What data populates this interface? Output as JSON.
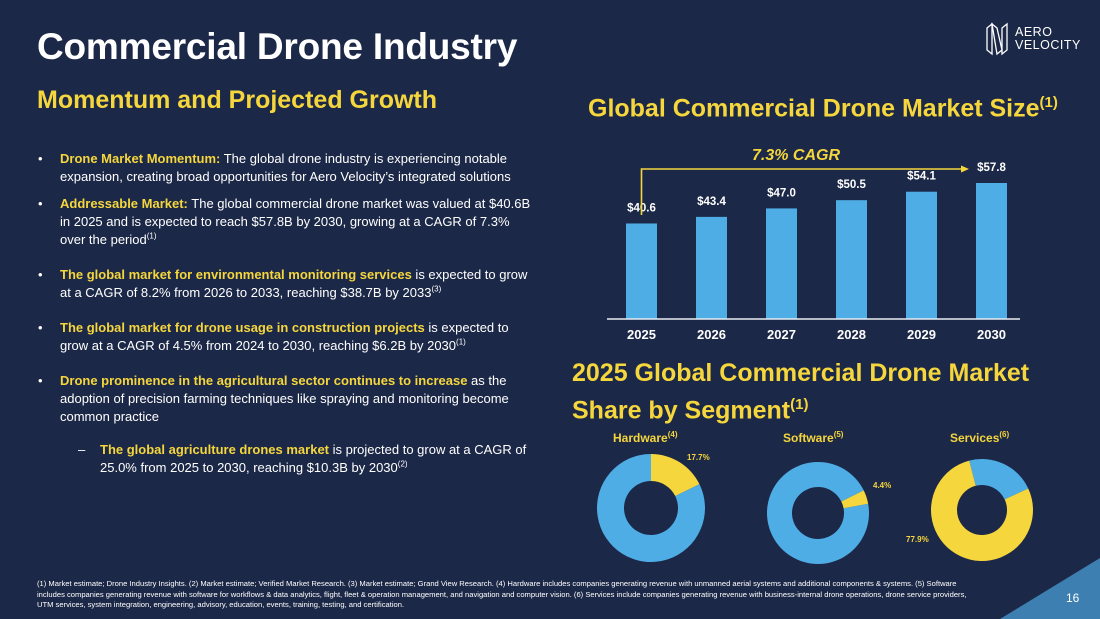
{
  "header": {
    "title": "Commercial Drone Industry",
    "subtitle": "Momentum and Projected Growth",
    "logo_line1": "AERO",
    "logo_line2": "VELOCITY"
  },
  "colors": {
    "background": "#1c2847",
    "accent_yellow": "#f5d63d",
    "bar_blue": "#4fade6",
    "corner_blue": "#3d7fb0"
  },
  "bullets": [
    {
      "highlight": "Drone Market Momentum:",
      "text": " The global drone industry is experiencing notable expansion, creating broad opportunities for Aero Velocity’s integrated solutions",
      "ref": ""
    },
    {
      "highlight": "Addressable Market:",
      "text": " The global commercial drone market was valued at $40.6B in 2025 and is expected to reach $57.8B by 2030, growing at a CAGR of 7.3% over the period",
      "ref": "(1)"
    },
    {
      "highlight": "The global market for environmental monitoring services",
      "text": " is expected to grow at a CAGR of 8.2% from 2026 to 2033, reaching $38.7B by 2033",
      "ref": "(3)"
    },
    {
      "highlight": "The global market for drone usage in construction projects",
      "text": " is expected to grow at a CAGR of 4.5% from 2024 to 2030, reaching $6.2B by 2030",
      "ref": "(1)"
    },
    {
      "highlight": "Drone prominence in the agricultural sector continues to increase",
      "text": " as the adoption of precision farming techniques like spraying and monitoring become common practice",
      "ref": ""
    }
  ],
  "sub_bullet": {
    "highlight": "The global agriculture drones market",
    "text": " is projected to grow at a CAGR of 25.0% from 2025 to 2030, reaching $10.3B by 2030",
    "ref": "(2)"
  },
  "bullet_marker": "•",
  "sub_bullet_marker": "–",
  "chart_data": [
    {
      "type": "bar",
      "title": "Global Commercial Drone Market Size",
      "title_ref": "(1)",
      "annotation": "7.3% CAGR",
      "categories": [
        "2025",
        "2026",
        "2027",
        "2028",
        "2029",
        "2030"
      ],
      "values": [
        40.6,
        43.4,
        47.0,
        50.5,
        54.1,
        57.8
      ],
      "data_labels": [
        "$40.6",
        "$43.4",
        "$47.0",
        "$50.5",
        "$54.1",
        "$57.8"
      ],
      "xlabel": "",
      "ylabel": "",
      "unit": "$B",
      "ylim": [
        0,
        60
      ],
      "grid": false
    },
    {
      "type": "pie",
      "title": "2025 Global Commercial Drone Market Share by Segment",
      "title_ref": "(1)",
      "charts": [
        {
          "name": "Hardware",
          "ref": "(4)",
          "value": 17.7,
          "label": "17.7%"
        },
        {
          "name": "Software",
          "ref": "(5)",
          "value": 4.4,
          "label": "4.4%"
        },
        {
          "name": "Services",
          "ref": "(6)",
          "value": 77.9,
          "label": "77.9%"
        }
      ],
      "highlight_color": "#f5d63d",
      "other_color": "#4fade6"
    }
  ],
  "footnote": "(1) Market estimate; Drone Industry Insights. (2) Market estimate; Verified Market Research. (3) Market estimate; Grand View Research. (4) Hardware includes companies generating revenue with unmanned aerial systems and additional components & systems. (5) Software includes companies generating revenue with software for workflows & data analytics, flight, fleet & operation management, and navigation and computer vision. (6) Services include companies generating revenue with business-internal drone operations, drone service providers, UTM services, system integration, engineering, advisory, education, events, training, testing, and certification.",
  "page_number": "16"
}
